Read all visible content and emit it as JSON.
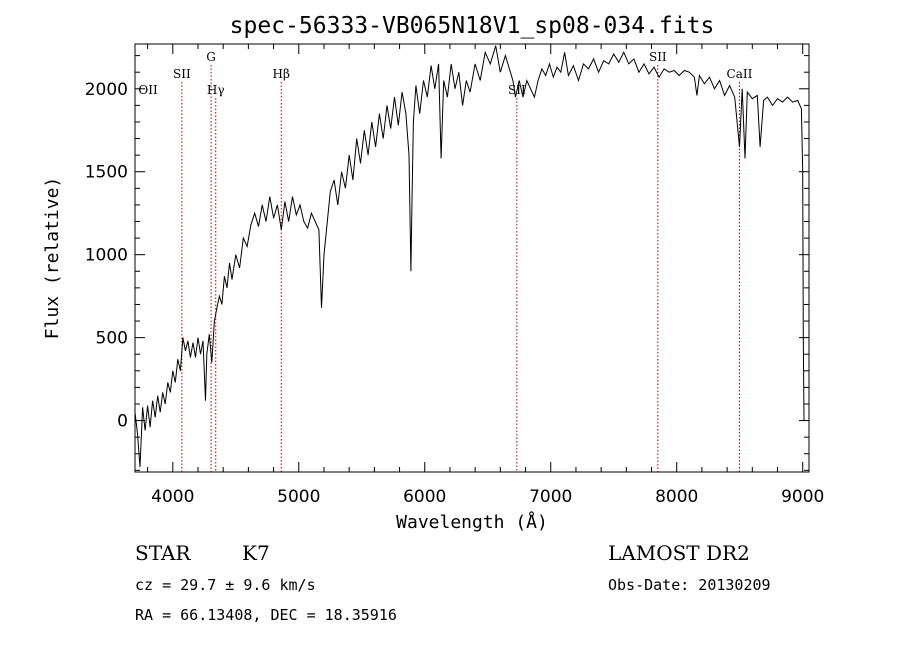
{
  "chart_data": {
    "type": "line",
    "title": "spec-56333-VB065N18V1_sp08-034.fits",
    "xlabel": "Wavelength (Å)",
    "ylabel": "Flux (relative)",
    "xlim": [
      3700,
      9050
    ],
    "ylim": [
      -310,
      2270
    ],
    "x_ticks": [
      4000,
      5000,
      6000,
      7000,
      8000,
      9000
    ],
    "y_ticks": [
      0,
      500,
      1000,
      1500,
      2000
    ],
    "grid": false,
    "series": [
      {
        "color": "#000000",
        "points": [
          [
            3700,
            50
          ],
          [
            3720,
            -80
          ],
          [
            3740,
            -280
          ],
          [
            3760,
            80
          ],
          [
            3780,
            -60
          ],
          [
            3800,
            90
          ],
          [
            3820,
            -40
          ],
          [
            3840,
            120
          ],
          [
            3860,
            20
          ],
          [
            3880,
            150
          ],
          [
            3900,
            50
          ],
          [
            3920,
            170
          ],
          [
            3940,
            100
          ],
          [
            3960,
            230
          ],
          [
            3980,
            170
          ],
          [
            4000,
            300
          ],
          [
            4020,
            230
          ],
          [
            4040,
            370
          ],
          [
            4060,
            300
          ],
          [
            4080,
            500
          ],
          [
            4100,
            420
          ],
          [
            4120,
            480
          ],
          [
            4140,
            380
          ],
          [
            4160,
            470
          ],
          [
            4180,
            380
          ],
          [
            4200,
            500
          ],
          [
            4220,
            400
          ],
          [
            4240,
            480
          ],
          [
            4260,
            120
          ],
          [
            4270,
            400
          ],
          [
            4290,
            520
          ],
          [
            4310,
            350
          ],
          [
            4330,
            600
          ],
          [
            4350,
            680
          ],
          [
            4370,
            750
          ],
          [
            4390,
            700
          ],
          [
            4410,
            870
          ],
          [
            4430,
            800
          ],
          [
            4450,
            950
          ],
          [
            4470,
            850
          ],
          [
            4500,
            1000
          ],
          [
            4530,
            920
          ],
          [
            4560,
            1100
          ],
          [
            4590,
            1050
          ],
          [
            4620,
            1180
          ],
          [
            4650,
            1250
          ],
          [
            4680,
            1170
          ],
          [
            4710,
            1300
          ],
          [
            4740,
            1200
          ],
          [
            4770,
            1350
          ],
          [
            4800,
            1220
          ],
          [
            4830,
            1300
          ],
          [
            4861,
            1150
          ],
          [
            4890,
            1320
          ],
          [
            4920,
            1200
          ],
          [
            4950,
            1350
          ],
          [
            4980,
            1240
          ],
          [
            5010,
            1300
          ],
          [
            5040,
            1200
          ],
          [
            5070,
            1160
          ],
          [
            5100,
            1250
          ],
          [
            5130,
            1200
          ],
          [
            5160,
            1150
          ],
          [
            5180,
            680
          ],
          [
            5200,
            1000
          ],
          [
            5220,
            1150
          ],
          [
            5250,
            1380
          ],
          [
            5280,
            1450
          ],
          [
            5310,
            1300
          ],
          [
            5340,
            1500
          ],
          [
            5370,
            1400
          ],
          [
            5400,
            1600
          ],
          [
            5430,
            1450
          ],
          [
            5460,
            1700
          ],
          [
            5490,
            1550
          ],
          [
            5520,
            1750
          ],
          [
            5550,
            1600
          ],
          [
            5580,
            1800
          ],
          [
            5610,
            1650
          ],
          [
            5640,
            1850
          ],
          [
            5670,
            1700
          ],
          [
            5700,
            1900
          ],
          [
            5730,
            1760
          ],
          [
            5760,
            1950
          ],
          [
            5790,
            1780
          ],
          [
            5820,
            1980
          ],
          [
            5850,
            1850
          ],
          [
            5875,
            1600
          ],
          [
            5890,
            900
          ],
          [
            5900,
            1400
          ],
          [
            5910,
            1800
          ],
          [
            5930,
            2020
          ],
          [
            5960,
            1850
          ],
          [
            5990,
            2050
          ],
          [
            6020,
            1950
          ],
          [
            6050,
            2140
          ],
          [
            6080,
            2000
          ],
          [
            6110,
            2150
          ],
          [
            6130,
            1580
          ],
          [
            6150,
            2050
          ],
          [
            6180,
            1950
          ],
          [
            6210,
            2150
          ],
          [
            6240,
            2000
          ],
          [
            6270,
            2100
          ],
          [
            6300,
            1900
          ],
          [
            6330,
            2050
          ],
          [
            6360,
            1980
          ],
          [
            6400,
            2150
          ],
          [
            6440,
            2050
          ],
          [
            6480,
            2220
          ],
          [
            6520,
            2150
          ],
          [
            6563,
            2260
          ],
          [
            6600,
            2100
          ],
          [
            6640,
            2200
          ],
          [
            6680,
            2100
          ],
          [
            6700,
            2050
          ],
          [
            6720,
            1950
          ],
          [
            6750,
            2050
          ],
          [
            6780,
            1950
          ],
          [
            6810,
            2050
          ],
          [
            6840,
            2000
          ],
          [
            6870,
            1950
          ],
          [
            6900,
            2050
          ],
          [
            6930,
            2120
          ],
          [
            6960,
            2080
          ],
          [
            6990,
            2150
          ],
          [
            7020,
            2070
          ],
          [
            7050,
            2130
          ],
          [
            7080,
            2100
          ],
          [
            7110,
            2220
          ],
          [
            7140,
            2080
          ],
          [
            7180,
            2140
          ],
          [
            7220,
            2050
          ],
          [
            7260,
            2150
          ],
          [
            7300,
            2120
          ],
          [
            7340,
            2180
          ],
          [
            7380,
            2100
          ],
          [
            7420,
            2170
          ],
          [
            7460,
            2150
          ],
          [
            7500,
            2210
          ],
          [
            7540,
            2160
          ],
          [
            7580,
            2220
          ],
          [
            7620,
            2150
          ],
          [
            7660,
            2180
          ],
          [
            7700,
            2100
          ],
          [
            7740,
            2150
          ],
          [
            7780,
            2090
          ],
          [
            7820,
            2130
          ],
          [
            7860,
            2070
          ],
          [
            7900,
            2120
          ],
          [
            7940,
            2100
          ],
          [
            7980,
            2110
          ],
          [
            8020,
            2080
          ],
          [
            8060,
            2110
          ],
          [
            8100,
            2100
          ],
          [
            8140,
            2070
          ],
          [
            8160,
            1960
          ],
          [
            8180,
            2080
          ],
          [
            8220,
            2030
          ],
          [
            8260,
            2070
          ],
          [
            8300,
            2000
          ],
          [
            8340,
            2050
          ],
          [
            8380,
            1960
          ],
          [
            8420,
            2020
          ],
          [
            8460,
            1950
          ],
          [
            8498,
            1650
          ],
          [
            8520,
            2000
          ],
          [
            8542,
            1580
          ],
          [
            8560,
            1980
          ],
          [
            8600,
            1940
          ],
          [
            8640,
            1960
          ],
          [
            8662,
            1650
          ],
          [
            8690,
            1930
          ],
          [
            8720,
            1950
          ],
          [
            8760,
            1900
          ],
          [
            8800,
            1940
          ],
          [
            8840,
            1920
          ],
          [
            8880,
            1950
          ],
          [
            8920,
            1920
          ],
          [
            8960,
            1930
          ],
          [
            8990,
            1880
          ],
          [
            9000,
            1500
          ],
          [
            9005,
            500
          ],
          [
            9010,
            0
          ]
        ]
      }
    ],
    "lines": [
      {
        "label": "OII",
        "x": 3727,
        "label_row": "mid",
        "marker": false
      },
      {
        "label": "SII",
        "x": 4072,
        "label_row": "high",
        "marker": true
      },
      {
        "label": "G",
        "x": 4304,
        "label_row": "top",
        "marker": true
      },
      {
        "label": "Hγ",
        "x": 4341,
        "label_row": "mid",
        "marker": true
      },
      {
        "label": "Hβ",
        "x": 4861,
        "label_row": "high",
        "marker": true
      },
      {
        "label": "SII",
        "x": 6731,
        "label_row": "mid",
        "marker": true
      },
      {
        "label": "SII",
        "x": 7850,
        "label_row": "top",
        "marker": true
      },
      {
        "label": "CaII",
        "x": 8498,
        "label_row": "high",
        "marker": true
      }
    ]
  },
  "info": {
    "object_class": "STAR",
    "subclass": "K7",
    "survey": "LAMOST DR2",
    "redshift_line": "cz = 29.7 ± 9.6 km/s",
    "obs_date_line": "Obs-Date: 20130209",
    "coords_line": "RA =  66.13408, DEC =  18.35916"
  }
}
